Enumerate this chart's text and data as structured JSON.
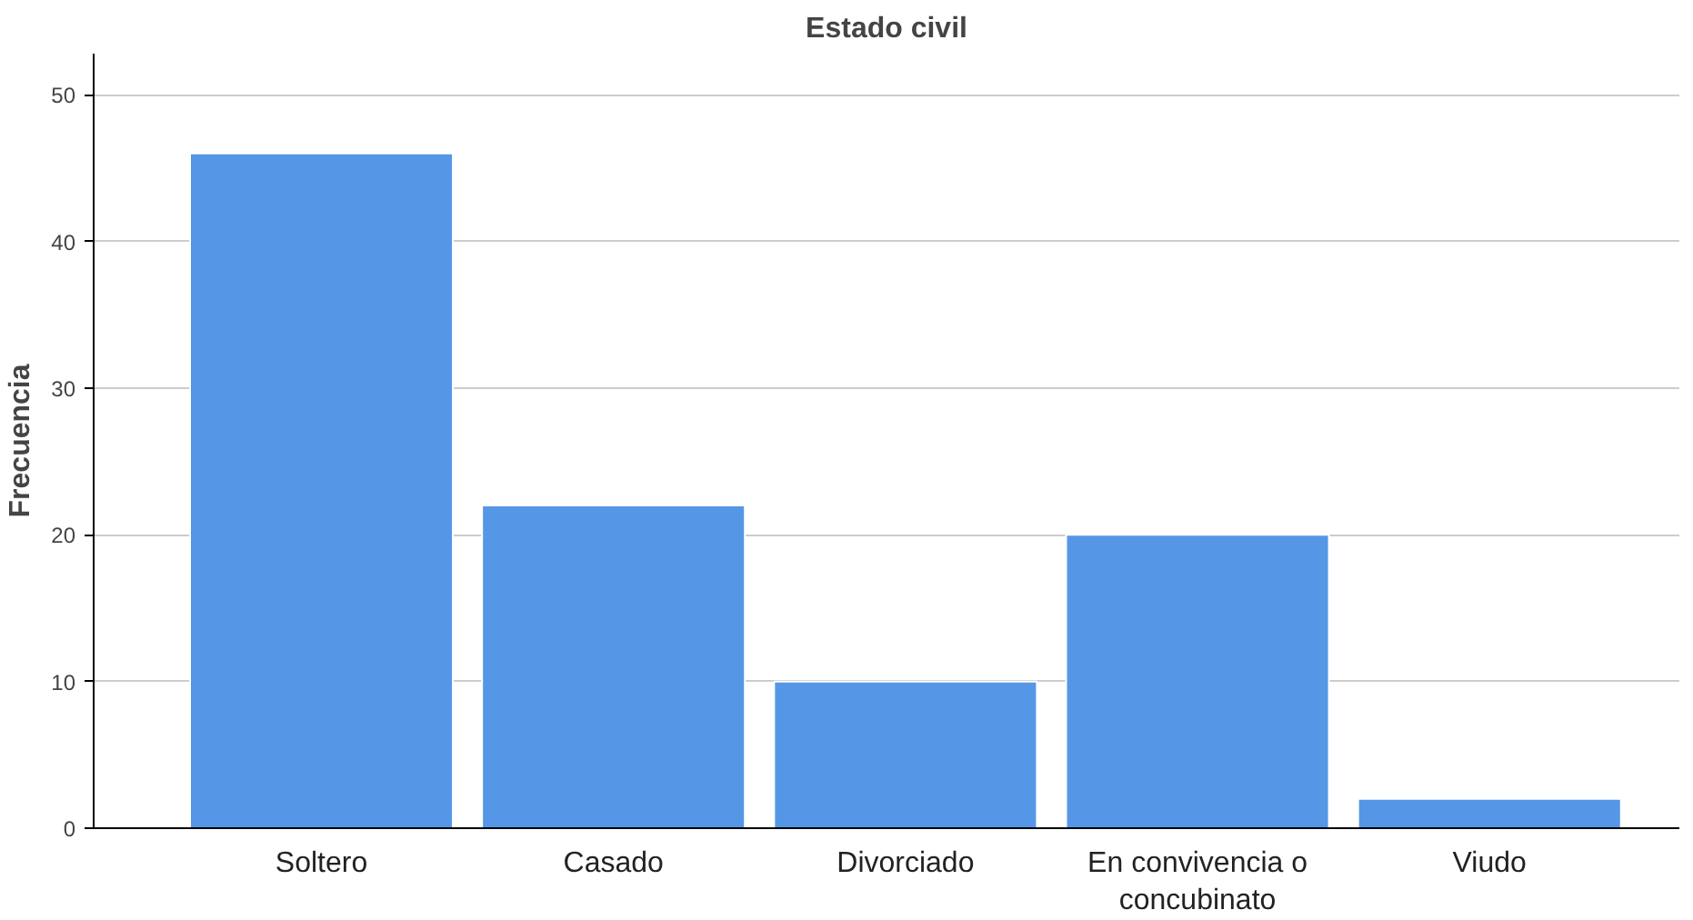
{
  "chart_data": {
    "type": "bar",
    "title": "Estado civil",
    "ylabel": "Frecuencia",
    "categories": [
      "Soltero",
      "Casado",
      "Divorciado",
      "En convivencia o concubinato",
      "Viudo"
    ],
    "values": [
      46,
      22,
      10,
      20,
      2
    ],
    "color": "#5597e6",
    "ylim": [
      0,
      52.8
    ],
    "yticks": [
      0,
      10,
      20,
      30,
      40,
      50
    ],
    "grid": "y"
  }
}
